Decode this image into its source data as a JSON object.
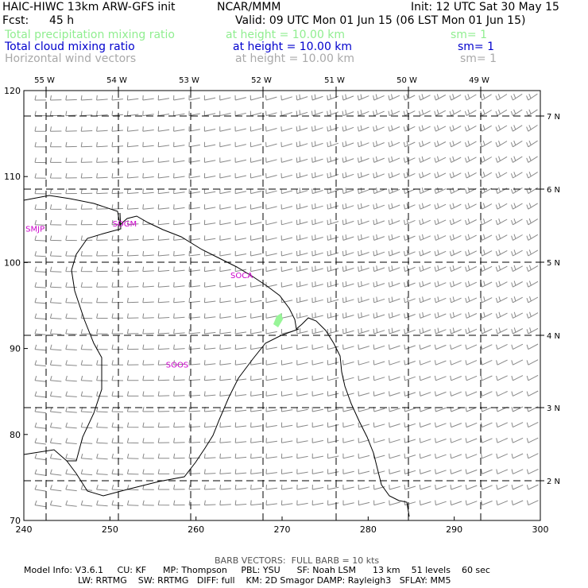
{
  "header": {
    "model_title": "HAIC-HIWC 13km ARW-GFS init",
    "org": "NCAR/MMM",
    "init": "Init: 12 UTC Sat 30 May 15",
    "fcst_label": "Fcst:",
    "fcst_value": "45 h",
    "valid": "Valid: 09 UTC Mon 01 Jun 15 (06 LST Mon 01 Jun 15)"
  },
  "fields": [
    {
      "name": "Total precipitation mixing ratio",
      "height": "at height = 10.00 km",
      "sm": "sm= 1",
      "color": "#90ee90"
    },
    {
      "name": "Total cloud mixing ratio",
      "height": "at height = 10.00 km",
      "sm": "sm= 1",
      "color": "#0000cd"
    },
    {
      "name": "Horizontal wind vectors",
      "height": "at height = 10.00 km",
      "sm": "sm= 1",
      "color": "#a9a9a9"
    }
  ],
  "map": {
    "x_ticks": [
      "240",
      "250",
      "260",
      "270",
      "280",
      "290",
      "300"
    ],
    "y_ticks": [
      "70",
      "80",
      "90",
      "100",
      "110",
      "120"
    ],
    "lon_labels": [
      "55 W",
      "54 W",
      "53 W",
      "52 W",
      "51 W",
      "50 W",
      "49 W"
    ],
    "lat_labels": [
      "7 N",
      "6 N",
      "5 N",
      "4 N",
      "3 N",
      "2 N"
    ],
    "stations": [
      {
        "id": "SMJP",
        "x": 240.2,
        "y": 103.6
      },
      {
        "id": "SOGM",
        "x": 250.3,
        "y": 104.2
      },
      {
        "id": "SOCA",
        "x": 264.0,
        "y": 98.2
      },
      {
        "id": "SOOS",
        "x": 256.5,
        "y": 87.8
      }
    ],
    "station_color": "#cc00cc",
    "coast_color": "#000000"
  },
  "footer": {
    "barb": "BARB VECTORS:  FULL BARB = 10 kts",
    "line1": "Model Info: V3.6.1     CU: KF      MP: Thompson     PBL: YSU      SF: Noah LSM      13 km    51 levels    60 sec",
    "line2": "LW: RRTMG    SW: RRTMG   DIFF: full    KM: 2D Smagor DAMP: Rayleigh3   SFLAY: MM5"
  }
}
